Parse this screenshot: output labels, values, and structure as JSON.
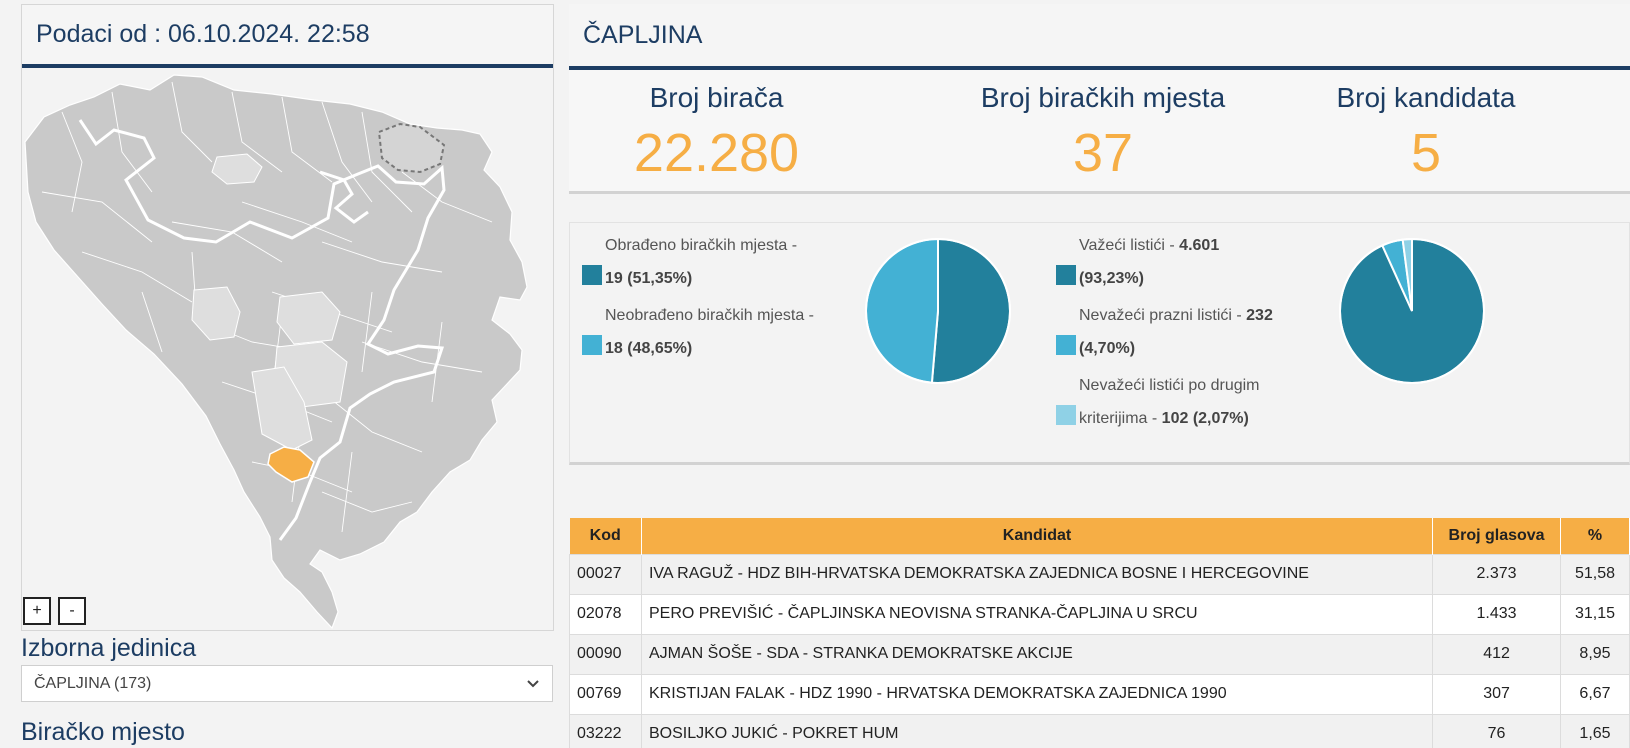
{
  "left": {
    "header": "Podaci od : 06.10.2024. 22:58",
    "zoom_in": "+",
    "zoom_out": "-",
    "izborna_jedinica_label": "Izborna jedinica",
    "izborna_jedinica_value": "ČAPLJINA (173)",
    "biracko_mjesto_label": "Biračko mjesto"
  },
  "right": {
    "title": "ČAPLJINA",
    "stats": [
      {
        "label": "Broj birača",
        "value": "22.280"
      },
      {
        "label": "Broj biračkih mjesta",
        "value": "37"
      },
      {
        "label": "Broj kandidata",
        "value": "5"
      }
    ]
  },
  "legend1": [
    {
      "line1": "Obrađeno biračkih mjesta -",
      "bold": "19 (51,35%)",
      "color": "#22809c"
    },
    {
      "line1": "Neobrađeno biračkih mjesta -",
      "bold": "18 (48,65%)",
      "color": "#43b1d4"
    }
  ],
  "legend2": [
    {
      "text": "Važeći listići - ",
      "bold": "4.601",
      "line2": "(93,23%)",
      "color": "#22809c"
    },
    {
      "text": "Nevažeći prazni listići - ",
      "bold": "232",
      "line2": "(4,70%)",
      "color": "#43b1d4"
    },
    {
      "text": "Nevažeći listići po drugim",
      "line2_prefix": "kriterijima - ",
      "bold": "102 (2,07%)",
      "color": "#8fd1e6"
    }
  ],
  "pies": [
    {
      "values": [
        51.35,
        48.65
      ],
      "colors": [
        "#22809c",
        "#43b1d4"
      ]
    },
    {
      "values": [
        93.23,
        4.7,
        2.07
      ],
      "colors": [
        "#22809c",
        "#43b1d4",
        "#8fd1e6"
      ]
    }
  ],
  "table": {
    "headers": [
      "Kod",
      "Kandidat",
      "Broj glasova",
      "%"
    ],
    "rows": [
      {
        "kod": "00027",
        "kandidat": "IVA RAGUŽ - HDZ BIH-HRVATSKA DEMOKRATSKA ZAJEDNICA BOSNE I HERCEGOVINE",
        "glasova": "2.373",
        "pct": "51,58"
      },
      {
        "kod": "02078",
        "kandidat": "PERO PREVIŠIĆ - ČAPLJINSKA NEOVISNA STRANKA-ČAPLJINA U SRCU",
        "glasova": "1.433",
        "pct": "31,15"
      },
      {
        "kod": "00090",
        "kandidat": "AJMAN ŠOŠE - SDA - STRANKA DEMOKRATSKE AKCIJE",
        "glasova": "412",
        "pct": "8,95"
      },
      {
        "kod": "00769",
        "kandidat": "KRISTIJAN FALAK - HDZ 1990 - HRVATSKA DEMOKRATSKA ZAJEDNICA 1990",
        "glasova": "307",
        "pct": "6,67"
      },
      {
        "kod": "03222",
        "kandidat": "BOSILJKO JUKIĆ - POKRET HUM",
        "glasova": "76",
        "pct": "1,65"
      }
    ]
  }
}
